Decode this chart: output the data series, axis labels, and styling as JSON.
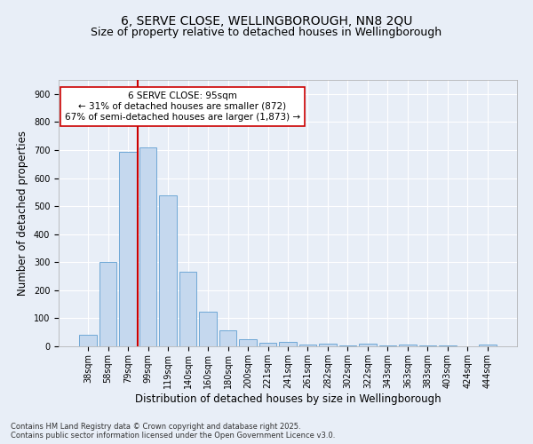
{
  "title": "6, SERVE CLOSE, WELLINGBOROUGH, NN8 2QU",
  "subtitle": "Size of property relative to detached houses in Wellingborough",
  "xlabel": "Distribution of detached houses by size in Wellingborough",
  "ylabel": "Number of detached properties",
  "categories": [
    "38sqm",
    "58sqm",
    "79sqm",
    "99sqm",
    "119sqm",
    "140sqm",
    "160sqm",
    "180sqm",
    "200sqm",
    "221sqm",
    "241sqm",
    "261sqm",
    "282sqm",
    "302sqm",
    "322sqm",
    "343sqm",
    "363sqm",
    "383sqm",
    "403sqm",
    "424sqm",
    "444sqm"
  ],
  "values": [
    42,
    300,
    695,
    708,
    538,
    265,
    122,
    57,
    25,
    14,
    17,
    7,
    10,
    2,
    10,
    2,
    5,
    2,
    2,
    0,
    7
  ],
  "bar_color": "#c5d8ee",
  "bar_edge_color": "#6fa8d6",
  "background_color": "#e8eef7",
  "plot_background": "#e8eef7",
  "grid_color": "#ffffff",
  "vline_x_index": 3,
  "vline_color": "#cc0000",
  "annotation_line1": "6 SERVE CLOSE: 95sqm",
  "annotation_line2": "← 31% of detached houses are smaller (872)",
  "annotation_line3": "67% of semi-detached houses are larger (1,873) →",
  "annotation_box_color": "#ffffff",
  "annotation_box_edge_color": "#cc0000",
  "ylim": [
    0,
    950
  ],
  "yticks": [
    0,
    100,
    200,
    300,
    400,
    500,
    600,
    700,
    800,
    900
  ],
  "footnote": "Contains HM Land Registry data © Crown copyright and database right 2025.\nContains public sector information licensed under the Open Government Licence v3.0.",
  "title_fontsize": 10,
  "subtitle_fontsize": 9,
  "axis_label_fontsize": 8.5,
  "tick_fontsize": 7,
  "annotation_fontsize": 7.5,
  "footnote_fontsize": 6
}
